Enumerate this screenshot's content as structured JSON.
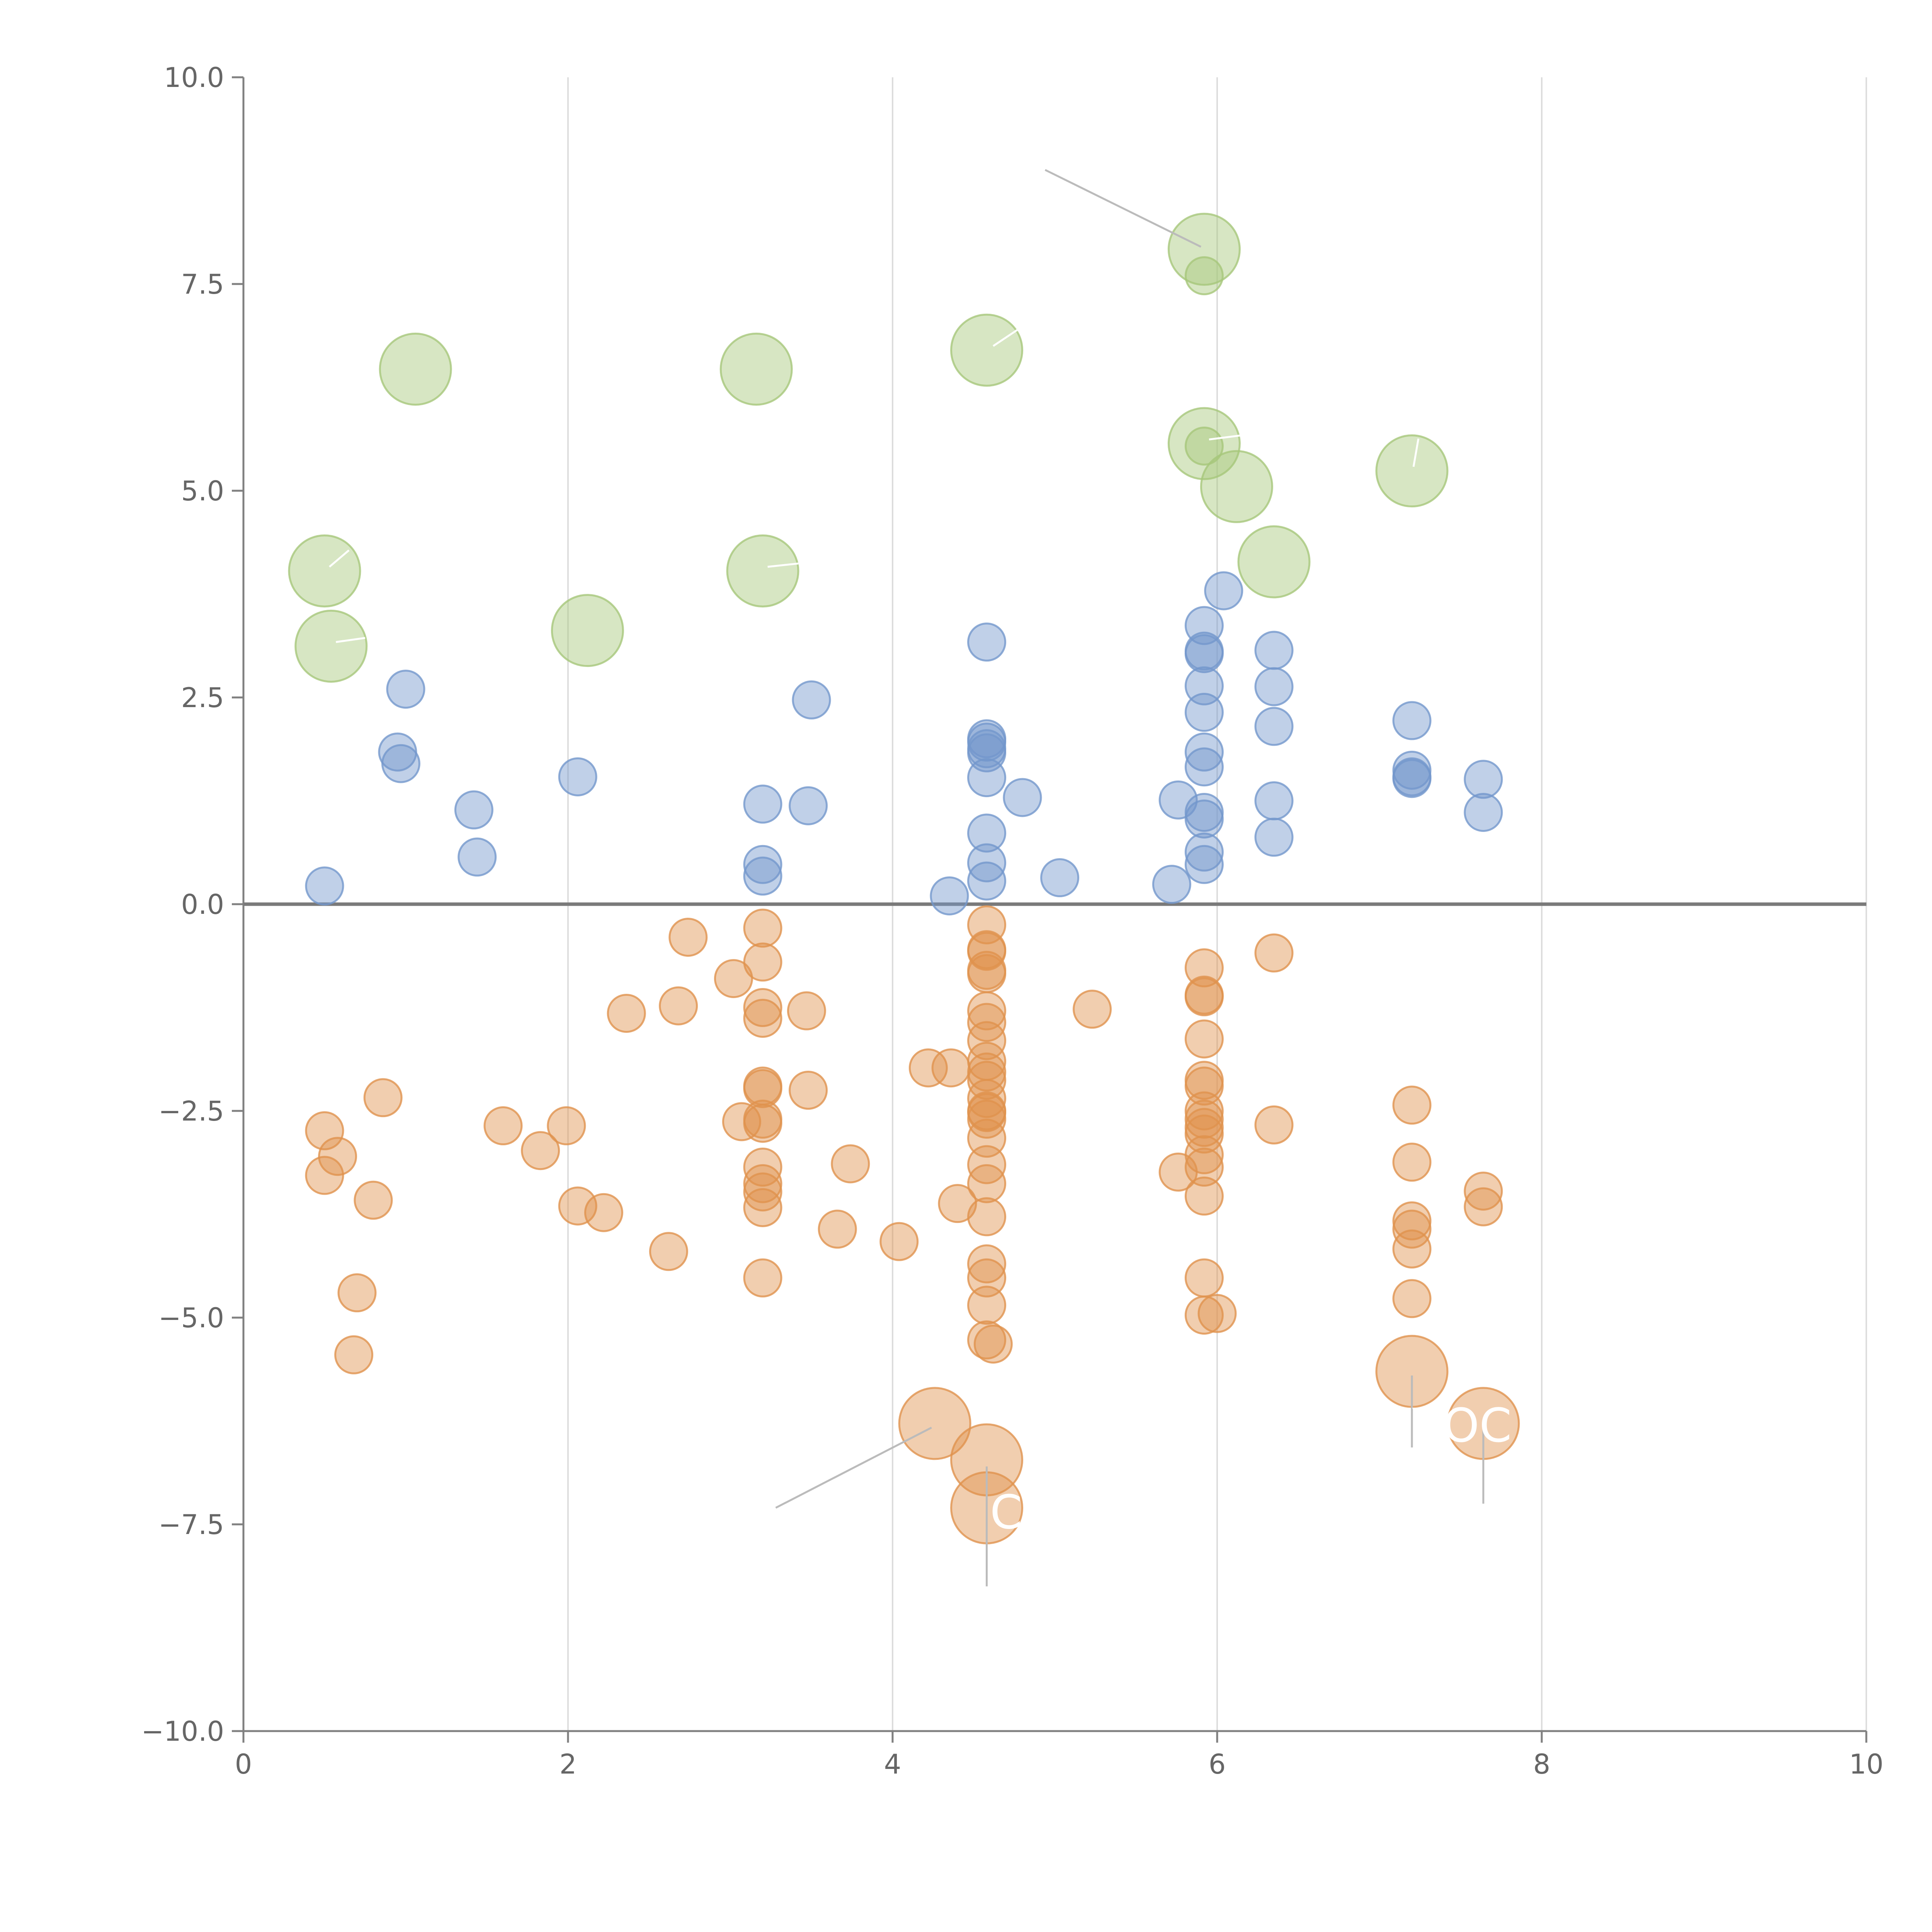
{
  "colors": {
    "blue": "#7397cc",
    "orange": "#e0924e",
    "green": "#a6c77b",
    "axis": "#808080",
    "grid": "#dddddd",
    "zero_line": "#7a7a7a",
    "leader": "#bbbbbb",
    "annotation_text": "#ffffff"
  },
  "chart_data": {
    "type": "scatter",
    "title": "",
    "xlabel": "",
    "ylabel": "",
    "xlim": [
      0,
      10
    ],
    "ylim": [
      -10,
      10
    ],
    "x_ticks": [
      "0",
      "2",
      "4",
      "6",
      "8",
      "10"
    ],
    "y_ticks": [
      "10.0",
      "7.5",
      "5.0",
      "2.5",
      "0.0",
      "−2.5",
      "−5.0",
      "−7.5",
      "−10.0"
    ],
    "x_tick_values": [
      0,
      2,
      4,
      6,
      8,
      10
    ],
    "y_tick_values": [
      10,
      7.5,
      5,
      2.5,
      0,
      -2.5,
      -5,
      -7.5,
      -10
    ],
    "grid": "vertical",
    "zero_line": true,
    "series": [
      {
        "color": "blue",
        "size": "small",
        "points": [
          [
            0.5,
            0.22
          ],
          [
            1.0,
            2.6
          ],
          [
            0.95,
            1.84
          ],
          [
            0.97,
            1.7
          ],
          [
            1.42,
            1.14
          ],
          [
            1.44,
            0.57
          ],
          [
            2.06,
            1.54
          ],
          [
            3.2,
            1.21
          ],
          [
            3.2,
            0.48
          ],
          [
            3.2,
            0.34
          ],
          [
            3.5,
            2.47
          ],
          [
            3.48,
            1.19
          ],
          [
            4.35,
            0.1
          ],
          [
            4.58,
            3.17
          ],
          [
            4.58,
            2.0
          ],
          [
            4.58,
            1.96
          ],
          [
            4.58,
            1.88
          ],
          [
            4.58,
            1.83
          ],
          [
            4.58,
            1.53
          ],
          [
            4.58,
            0.86
          ],
          [
            4.58,
            0.5
          ],
          [
            4.58,
            0.28
          ],
          [
            4.8,
            1.29
          ],
          [
            5.03,
            0.32
          ],
          [
            5.72,
            0.24
          ],
          [
            5.76,
            1.26
          ],
          [
            5.92,
            3.37
          ],
          [
            5.92,
            3.06
          ],
          [
            5.92,
            3.03
          ],
          [
            5.92,
            2.64
          ],
          [
            5.92,
            2.32
          ],
          [
            5.92,
            1.84
          ],
          [
            5.92,
            1.66
          ],
          [
            5.92,
            1.11
          ],
          [
            5.92,
            1.03
          ],
          [
            5.92,
            0.63
          ],
          [
            5.92,
            0.48
          ],
          [
            6.04,
            3.79
          ],
          [
            6.35,
            3.07
          ],
          [
            6.35,
            2.63
          ],
          [
            6.35,
            2.15
          ],
          [
            6.35,
            1.25
          ],
          [
            6.35,
            0.81
          ],
          [
            7.2,
            2.22
          ],
          [
            7.2,
            1.62
          ],
          [
            7.2,
            1.54
          ],
          [
            7.2,
            1.52
          ],
          [
            7.64,
            1.51
          ],
          [
            7.64,
            1.11
          ]
        ]
      },
      {
        "color": "orange",
        "size": "small",
        "points": [
          [
            0.5,
            -2.74
          ],
          [
            0.58,
            -3.05
          ],
          [
            0.5,
            -3.28
          ],
          [
            0.86,
            -2.34
          ],
          [
            0.8,
            -3.58
          ],
          [
            0.7,
            -4.7
          ],
          [
            0.68,
            -5.45
          ],
          [
            1.6,
            -2.68
          ],
          [
            1.83,
            -2.98
          ],
          [
            1.99,
            -2.68
          ],
          [
            2.06,
            -3.65
          ],
          [
            2.22,
            -3.73
          ],
          [
            2.36,
            -1.32
          ],
          [
            2.62,
            -4.2
          ],
          [
            2.68,
            -1.23
          ],
          [
            2.74,
            -0.4
          ],
          [
            3.02,
            -0.9
          ],
          [
            3.07,
            -2.63
          ],
          [
            3.2,
            -0.29
          ],
          [
            3.2,
            -0.7
          ],
          [
            3.2,
            -1.25
          ],
          [
            3.2,
            -1.38
          ],
          [
            3.2,
            -2.2
          ],
          [
            3.2,
            -2.23
          ],
          [
            3.2,
            -2.6
          ],
          [
            3.2,
            -2.65
          ],
          [
            3.2,
            -3.18
          ],
          [
            3.2,
            -3.38
          ],
          [
            3.2,
            -3.48
          ],
          [
            3.2,
            -3.67
          ],
          [
            3.2,
            -4.52
          ],
          [
            3.47,
            -1.29
          ],
          [
            3.48,
            -2.25
          ],
          [
            3.66,
            -3.93
          ],
          [
            3.74,
            -3.14
          ],
          [
            4.04,
            -4.08
          ],
          [
            4.22,
            -1.98
          ],
          [
            4.36,
            -1.98
          ],
          [
            4.4,
            -3.62
          ],
          [
            4.58,
            -0.25
          ],
          [
            4.58,
            -0.55
          ],
          [
            4.58,
            -0.57
          ],
          [
            4.58,
            -0.8
          ],
          [
            4.58,
            -0.84
          ],
          [
            4.58,
            -1.29
          ],
          [
            4.58,
            -1.43
          ],
          [
            4.58,
            -1.65
          ],
          [
            4.58,
            -1.9
          ],
          [
            4.58,
            -2.03
          ],
          [
            4.58,
            -2.13
          ],
          [
            4.58,
            -2.35
          ],
          [
            4.58,
            -2.5
          ],
          [
            4.58,
            -2.52
          ],
          [
            4.58,
            -2.6
          ],
          [
            4.58,
            -2.83
          ],
          [
            4.58,
            -3.15
          ],
          [
            4.58,
            -3.38
          ],
          [
            4.58,
            -3.78
          ],
          [
            4.58,
            -4.35
          ],
          [
            4.58,
            -4.52
          ],
          [
            4.58,
            -4.85
          ],
          [
            4.58,
            -5.27
          ],
          [
            4.62,
            -5.32
          ],
          [
            5.23,
            -1.27
          ],
          [
            5.76,
            -3.24
          ],
          [
            5.92,
            -0.77
          ],
          [
            5.92,
            -1.1
          ],
          [
            5.92,
            -1.12
          ],
          [
            5.92,
            -1.63
          ],
          [
            5.92,
            -2.13
          ],
          [
            5.92,
            -2.2
          ],
          [
            5.92,
            -2.5
          ],
          [
            5.92,
            -2.6
          ],
          [
            5.92,
            -2.7
          ],
          [
            5.92,
            -2.78
          ],
          [
            5.92,
            -3.03
          ],
          [
            5.92,
            -3.18
          ],
          [
            5.92,
            -3.53
          ],
          [
            5.92,
            -4.52
          ],
          [
            5.92,
            -4.97
          ],
          [
            6.0,
            -4.95
          ],
          [
            6.35,
            -0.59
          ],
          [
            6.35,
            -2.67
          ],
          [
            7.2,
            -2.43
          ],
          [
            7.2,
            -3.12
          ],
          [
            7.2,
            -3.83
          ],
          [
            7.2,
            -3.93
          ],
          [
            7.2,
            -4.17
          ],
          [
            7.2,
            -4.77
          ],
          [
            7.64,
            -3.47
          ],
          [
            7.64,
            -3.66
          ]
        ]
      },
      {
        "color": "orange",
        "size": "large",
        "points": [
          [
            4.26,
            -6.28
          ],
          [
            4.58,
            -6.72
          ],
          [
            4.58,
            -7.3
          ],
          [
            7.2,
            -5.65
          ],
          [
            7.64,
            -6.28
          ]
        ]
      },
      {
        "color": "green",
        "size": "large",
        "points": [
          [
            0.5,
            4.03
          ],
          [
            0.54,
            3.12
          ],
          [
            1.06,
            6.47
          ],
          [
            2.12,
            3.31
          ],
          [
            3.16,
            6.47
          ],
          [
            3.2,
            4.03
          ],
          [
            4.58,
            6.7
          ],
          [
            5.92,
            7.92
          ],
          [
            5.92,
            5.57
          ],
          [
            6.12,
            5.05
          ],
          [
            6.35,
            4.14
          ],
          [
            7.2,
            5.24
          ]
        ]
      },
      {
        "color": "green",
        "size": "small",
        "points": [
          [
            5.92,
            7.6
          ],
          [
            5.92,
            5.54
          ]
        ]
      }
    ],
    "annotations": [
      {
        "text": "",
        "line": [
          [
            4.94,
            8.88
          ],
          [
            5.9,
            7.95
          ]
        ],
        "color": "leader"
      },
      {
        "text": "",
        "line": [
          [
            3.28,
            -7.3
          ],
          [
            4.24,
            -6.33
          ]
        ],
        "color": "leader"
      },
      {
        "text": "",
        "line": [
          [
            4.58,
            -6.8
          ],
          [
            4.58,
            -8.25
          ]
        ],
        "color": "leader"
      },
      {
        "text": "",
        "line": [
          [
            7.2,
            -5.7
          ],
          [
            7.2,
            -6.57
          ]
        ],
        "color": "leader"
      },
      {
        "text": "",
        "line": [
          [
            7.64,
            -6.33
          ],
          [
            7.64,
            -7.25
          ]
        ],
        "color": "leader"
      },
      {
        "text": "",
        "line": [
          [
            0.53,
            4.08
          ],
          [
            0.65,
            4.28
          ]
        ],
        "color": "annotation_text"
      },
      {
        "text": "",
        "line": [
          [
            0.57,
            3.17
          ],
          [
            0.75,
            3.22
          ]
        ],
        "color": "annotation_text"
      },
      {
        "text": "",
        "line": [
          [
            3.23,
            4.08
          ],
          [
            3.42,
            4.12
          ]
        ],
        "color": "annotation_text"
      },
      {
        "text": "",
        "line": [
          [
            4.62,
            6.75
          ],
          [
            4.78,
            6.96
          ]
        ],
        "color": "annotation_text"
      },
      {
        "text": "",
        "line": [
          [
            5.95,
            5.62
          ],
          [
            6.15,
            5.67
          ]
        ],
        "color": "annotation_text"
      },
      {
        "text": "",
        "line": [
          [
            7.21,
            5.29
          ],
          [
            7.24,
            5.63
          ]
        ],
        "color": "annotation_text"
      },
      {
        "text": "C",
        "pos": [
          4.6,
          -7.55
        ],
        "color": "annotation_text"
      },
      {
        "text": "VOC",
        "pos": [
          7.2,
          -6.5
        ],
        "color": "annotation_text"
      }
    ]
  }
}
